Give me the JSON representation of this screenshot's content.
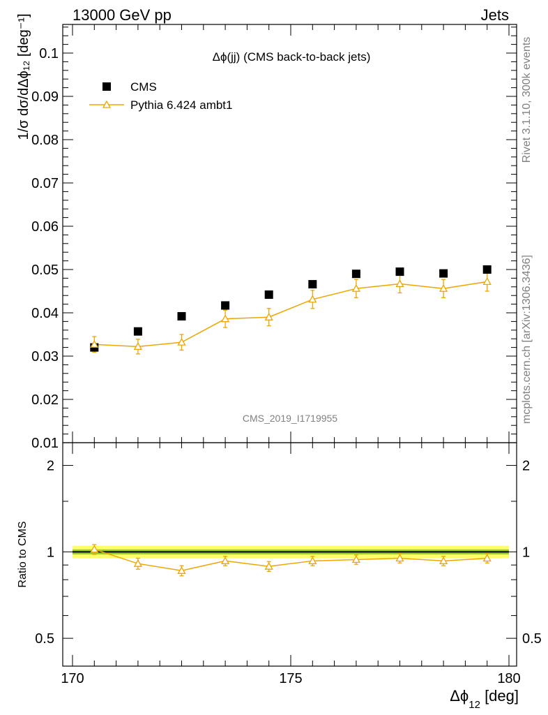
{
  "header": {
    "left": "13000 GeV pp",
    "right": "Jets"
  },
  "side_labels": {
    "rivet": "Rivet 3.1.10,  300k events",
    "mcplots": "mcplots.cern.ch [arXiv:1306.3436]"
  },
  "chart_data": {
    "type": "scatter",
    "title": "Δϕ(jj) (CMS back-to-back jets)",
    "watermark": "CMS_2019_I1719955",
    "xlabel": "Δϕ₁₂ [deg]",
    "xlabel_main": "Δϕ",
    "xlabel_sub": "12",
    "xlabel_unit": " [deg]",
    "ylabel_main": "1/σ dσ/dΔϕ₁₂ [deg⁻¹]",
    "ratio_ylabel": "Ratio to CMS",
    "xlim": [
      170,
      180
    ],
    "ylim": [
      0.01,
      0.105
    ],
    "ratio_ylim": [
      0.4,
      2.4
    ],
    "ratio_log_scale": true,
    "x_ticks": [
      "170",
      "175",
      "180"
    ],
    "y_ticks": [
      "0.01",
      "0.02",
      "0.03",
      "0.04",
      "0.05",
      "0.06",
      "0.07",
      "0.08",
      "0.09",
      "0.1"
    ],
    "ratio_ticks": [
      "0.5",
      "1",
      "2"
    ],
    "legend_position": "top-left",
    "x": [
      170.5,
      171.5,
      172.5,
      173.5,
      174.5,
      175.5,
      176.5,
      177.5,
      178.5,
      179.5
    ],
    "series": [
      {
        "name": "CMS",
        "marker": "square",
        "color": "#000000",
        "values": [
          0.032,
          0.0357,
          0.0392,
          0.0417,
          0.0442,
          0.0466,
          0.049,
          0.0495,
          0.0491,
          0.05
        ]
      },
      {
        "name": "Pythia 6.424 ambt1",
        "marker": "triangle-open",
        "color": "#eea500",
        "values": [
          0.0327,
          0.0322,
          0.0332,
          0.0386,
          0.039,
          0.0431,
          0.0456,
          0.0467,
          0.0456,
          0.0472
        ],
        "errors": [
          0.0018,
          0.0017,
          0.0018,
          0.002,
          0.002,
          0.0021,
          0.0021,
          0.0021,
          0.0021,
          0.0022
        ],
        "ratio": [
          1.02,
          0.91,
          0.86,
          0.93,
          0.89,
          0.93,
          0.94,
          0.95,
          0.93,
          0.95
        ],
        "ratio_errors": [
          0.04,
          0.04,
          0.035,
          0.035,
          0.035,
          0.035,
          0.035,
          0.035,
          0.035,
          0.035
        ]
      }
    ],
    "ratio_band": {
      "inner": 0.02,
      "outer": 0.05,
      "inner_color": "#9acd32",
      "outer_color": "#ffff66"
    }
  }
}
